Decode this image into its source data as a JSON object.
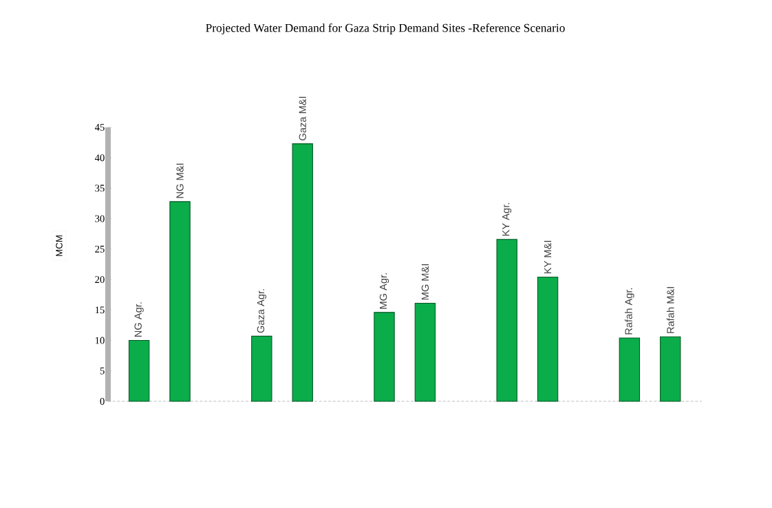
{
  "chart_data": {
    "type": "bar",
    "title": "Projected Water Demand for Gaza Strip Demand Sites -Reference Scenario",
    "ylabel": "MCM",
    "categories": [
      "NG Agr.",
      "NG M&I",
      null,
      "Gaza Agr.",
      "Gaza M&I",
      null,
      "MG Agr.",
      "MG M&I",
      null,
      "KY Agr.",
      "KY M&I",
      null,
      "Rafah Agr.",
      "Rafah M&I"
    ],
    "values": [
      10,
      32.8,
      null,
      10.7,
      42.3,
      null,
      14.6,
      16.1,
      null,
      26.6,
      20.4,
      null,
      10.4,
      10.6
    ],
    "color": "#0aad4a",
    "ylim": [
      0,
      45
    ],
    "yticks": [
      0,
      5,
      10,
      15,
      20,
      25,
      30,
      35,
      40,
      45
    ],
    "tick_labels": "y"
  }
}
